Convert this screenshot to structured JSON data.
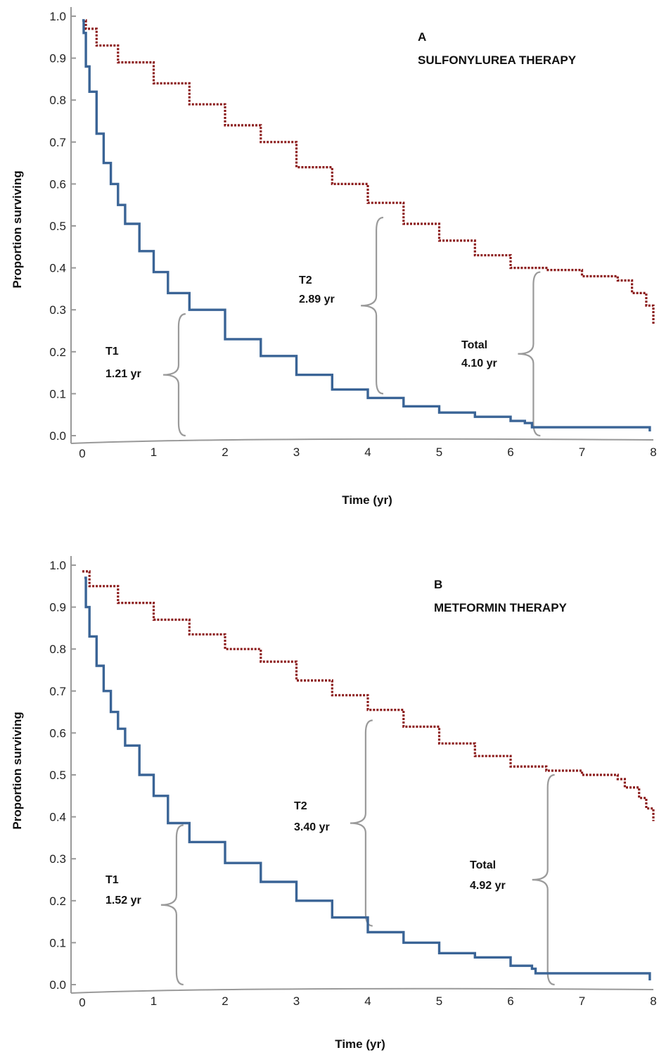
{
  "chart_data": [
    {
      "type": "line",
      "panel_letter": "A",
      "title": "SULFONYLUREA THERAPY",
      "xlabel": "Time (yr)",
      "ylabel": "Proportion surviving",
      "xlim": [
        0,
        8
      ],
      "ylim": [
        0,
        1
      ],
      "x_ticks": [
        "0",
        "1",
        "2",
        "3",
        "4",
        "5",
        "6",
        "7",
        "8"
      ],
      "y_ticks": [
        "0.0",
        "0.1",
        "0.2",
        "0.3",
        "0.4",
        "0.5",
        "0.6",
        "0.7",
        "0.8",
        "0.9",
        "1.0"
      ],
      "series": [
        {
          "color": "#8B1A1A",
          "style": "dotted-step",
          "points": [
            [
              0,
              0.99
            ],
            [
              0.05,
              0.97
            ],
            [
              0.2,
              0.93
            ],
            [
              0.5,
              0.89
            ],
            [
              1.0,
              0.84
            ],
            [
              1.5,
              0.79
            ],
            [
              2.0,
              0.74
            ],
            [
              2.5,
              0.7
            ],
            [
              3.0,
              0.64
            ],
            [
              3.5,
              0.6
            ],
            [
              4.0,
              0.555
            ],
            [
              4.5,
              0.505
            ],
            [
              5.0,
              0.465
            ],
            [
              5.5,
              0.43
            ],
            [
              6.0,
              0.4
            ],
            [
              6.5,
              0.395
            ],
            [
              7.0,
              0.38
            ],
            [
              7.5,
              0.37
            ],
            [
              7.7,
              0.34
            ],
            [
              7.9,
              0.31
            ],
            [
              8.0,
              0.265
            ]
          ]
        },
        {
          "color": "#3A6496",
          "style": "solid-step",
          "points": [
            [
              0,
              0.99
            ],
            [
              0.02,
              0.96
            ],
            [
              0.05,
              0.88
            ],
            [
              0.1,
              0.82
            ],
            [
              0.2,
              0.72
            ],
            [
              0.3,
              0.65
            ],
            [
              0.4,
              0.6
            ],
            [
              0.5,
              0.55
            ],
            [
              0.6,
              0.505
            ],
            [
              0.8,
              0.44
            ],
            [
              1.0,
              0.39
            ],
            [
              1.2,
              0.34
            ],
            [
              1.5,
              0.3
            ],
            [
              2.0,
              0.23
            ],
            [
              2.5,
              0.19
            ],
            [
              3.0,
              0.145
            ],
            [
              3.5,
              0.11
            ],
            [
              4.0,
              0.09
            ],
            [
              4.5,
              0.07
            ],
            [
              5.0,
              0.055
            ],
            [
              5.5,
              0.045
            ],
            [
              6.0,
              0.035
            ],
            [
              6.2,
              0.03
            ],
            [
              6.3,
              0.02
            ],
            [
              7.0,
              0.02
            ],
            [
              7.9,
              0.02
            ],
            [
              7.95,
              0.01
            ]
          ]
        }
      ],
      "annotations": [
        {
          "line1": "T1",
          "line2": "1.21 yr",
          "brace": [
            1.23,
            0.0,
            0.29
          ]
        },
        {
          "line1": "T2",
          "line2": "2.89 yr",
          "brace": [
            4.0,
            0.1,
            0.52
          ]
        },
        {
          "line1": "Total",
          "line2": "4.10 yr",
          "brace": [
            6.2,
            0.0,
            0.39
          ]
        }
      ]
    },
    {
      "type": "line",
      "panel_letter": "B",
      "title": "METFORMIN THERAPY",
      "xlabel": "Time (yr)",
      "ylabel": "Proportion surviving",
      "xlim": [
        0,
        8
      ],
      "ylim": [
        0,
        1
      ],
      "x_ticks": [
        "0",
        "1",
        "2",
        "3",
        "4",
        "5",
        "6",
        "7",
        "8"
      ],
      "y_ticks": [
        "0.0",
        "0.1",
        "0.2",
        "0.3",
        "0.4",
        "0.5",
        "0.6",
        "0.7",
        "0.8",
        "0.9",
        "1.0"
      ],
      "series": [
        {
          "color": "#8B1A1A",
          "style": "dotted-step",
          "points": [
            [
              0,
              0.985
            ],
            [
              0.1,
              0.95
            ],
            [
              0.5,
              0.91
            ],
            [
              1.0,
              0.87
            ],
            [
              1.5,
              0.835
            ],
            [
              2.0,
              0.8
            ],
            [
              2.5,
              0.77
            ],
            [
              3.0,
              0.725
            ],
            [
              3.5,
              0.69
            ],
            [
              4.0,
              0.655
            ],
            [
              4.5,
              0.615
            ],
            [
              5.0,
              0.575
            ],
            [
              5.5,
              0.545
            ],
            [
              6.0,
              0.52
            ],
            [
              6.5,
              0.51
            ],
            [
              7.0,
              0.5
            ],
            [
              7.5,
              0.49
            ],
            [
              7.6,
              0.47
            ],
            [
              7.8,
              0.445
            ],
            [
              7.9,
              0.42
            ],
            [
              8.0,
              0.39
            ]
          ]
        },
        {
          "color": "#3A6496",
          "style": "solid-step",
          "points": [
            [
              0.03,
              0.97
            ],
            [
              0.05,
              0.9
            ],
            [
              0.1,
              0.83
            ],
            [
              0.2,
              0.76
            ],
            [
              0.3,
              0.7
            ],
            [
              0.4,
              0.65
            ],
            [
              0.5,
              0.61
            ],
            [
              0.6,
              0.57
            ],
            [
              0.8,
              0.5
            ],
            [
              1.0,
              0.45
            ],
            [
              1.2,
              0.385
            ],
            [
              1.5,
              0.34
            ],
            [
              2.0,
              0.29
            ],
            [
              2.5,
              0.245
            ],
            [
              3.0,
              0.2
            ],
            [
              3.5,
              0.16
            ],
            [
              4.0,
              0.125
            ],
            [
              4.5,
              0.1
            ],
            [
              5.0,
              0.075
            ],
            [
              5.5,
              0.065
            ],
            [
              6.0,
              0.045
            ],
            [
              6.3,
              0.038
            ],
            [
              6.35,
              0.027
            ],
            [
              7.0,
              0.027
            ],
            [
              7.9,
              0.027
            ],
            [
              7.95,
              0.01
            ]
          ]
        }
      ],
      "annotations": [
        {
          "line1": "T1",
          "line2": "1.52 yr",
          "brace": [
            1.2,
            0.0,
            0.38
          ]
        },
        {
          "line1": "T2",
          "line2": "3.40 yr",
          "brace": [
            3.85,
            0.14,
            0.63
          ]
        },
        {
          "line1": "Total",
          "line2": "4.92 yr",
          "brace": [
            6.4,
            0.0,
            0.5
          ]
        }
      ]
    }
  ]
}
